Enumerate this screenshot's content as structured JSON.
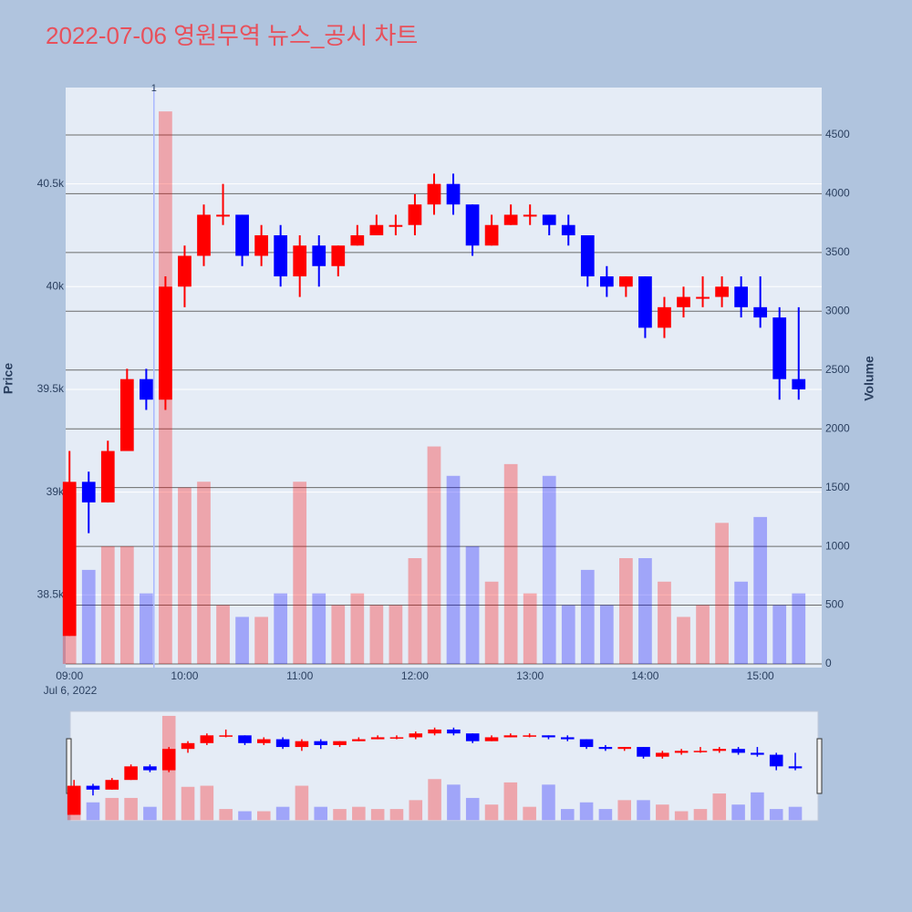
{
  "chart_data": {
    "type": "candlestick",
    "title": "2022-07-06 영원무역 뉴스_공시 차트",
    "x": [
      "09:00",
      "09:10",
      "09:20",
      "09:30",
      "09:40",
      "09:50",
      "10:00",
      "10:10",
      "10:20",
      "10:30",
      "10:40",
      "10:50",
      "11:00",
      "11:10",
      "11:20",
      "11:30",
      "11:40",
      "11:50",
      "12:00",
      "12:10",
      "12:20",
      "12:30",
      "12:40",
      "12:50",
      "13:00",
      "13:10",
      "13:20",
      "13:30",
      "13:40",
      "13:50",
      "14:00",
      "14:10",
      "14:20",
      "14:30",
      "14:40",
      "14:50",
      "15:00",
      "15:10",
      "15:20"
    ],
    "open": [
      38300,
      39050,
      38950,
      39200,
      39550,
      39450,
      40000,
      40150,
      40350,
      40350,
      40150,
      40250,
      40050,
      40200,
      40100,
      40200,
      40250,
      40300,
      40300,
      40400,
      40500,
      40400,
      40200,
      40300,
      40350,
      40350,
      40300,
      40250,
      40050,
      40000,
      40050,
      39800,
      39900,
      39950,
      39950,
      40000,
      39900,
      39850,
      39550
    ],
    "high": [
      39200,
      39100,
      39250,
      39600,
      39600,
      40050,
      40200,
      40400,
      40500,
      40350,
      40300,
      40300,
      40250,
      40250,
      40200,
      40300,
      40350,
      40350,
      40450,
      40550,
      40550,
      40400,
      40350,
      40400,
      40400,
      40350,
      40350,
      40250,
      40100,
      40050,
      40050,
      39950,
      40000,
      40050,
      40050,
      40050,
      40050,
      39900,
      39900
    ],
    "low": [
      38300,
      38800,
      38950,
      39200,
      39400,
      39400,
      39900,
      40100,
      40300,
      40100,
      40100,
      40000,
      39950,
      40000,
      40050,
      40200,
      40250,
      40250,
      40250,
      40350,
      40350,
      40150,
      40200,
      40300,
      40300,
      40250,
      40200,
      40000,
      39950,
      39950,
      39750,
      39750,
      39850,
      39900,
      39900,
      39850,
      39800,
      39450,
      39450
    ],
    "close": [
      39050,
      38950,
      39200,
      39550,
      39450,
      40000,
      40150,
      40350,
      40350,
      40150,
      40250,
      40050,
      40200,
      40100,
      40200,
      40250,
      40300,
      40300,
      40400,
      40500,
      40400,
      40200,
      40300,
      40350,
      40350,
      40300,
      40250,
      40050,
      40000,
      40050,
      39800,
      39900,
      39950,
      39950,
      40000,
      39900,
      39850,
      39550,
      39500
    ],
    "volume": [
      1500,
      800,
      1000,
      1000,
      600,
      4700,
      1500,
      1550,
      500,
      400,
      400,
      600,
      1550,
      600,
      500,
      600,
      500,
      500,
      900,
      1850,
      1600,
      1000,
      700,
      1700,
      600,
      1600,
      500,
      800,
      500,
      900,
      900,
      700,
      400,
      500,
      1200,
      700,
      1250,
      500,
      600
    ],
    "increasing_color": "#ff0000",
    "decreasing_color": "#0000ff",
    "xlim": [
      "08:58",
      "15:32"
    ],
    "xticks": [
      "09:00",
      "10:00",
      "11:00",
      "12:00",
      "13:00",
      "14:00",
      "15:00"
    ],
    "x_date_label": "Jul 6, 2022",
    "ylim": [
      38146,
      40969
    ],
    "yticks": [
      {
        "value": 38500,
        "label": "38.5k"
      },
      {
        "value": 39000,
        "label": "39k"
      },
      {
        "value": 39500,
        "label": "39.5k"
      },
      {
        "value": 40000,
        "label": "40k"
      },
      {
        "value": 40500,
        "label": "40.5k"
      }
    ],
    "y2lim": [
      -31,
      4903
    ],
    "y2ticks": [
      0,
      500,
      1000,
      1500,
      2000,
      2500,
      3000,
      3500,
      4000,
      4500
    ],
    "yaxis_title": "Price",
    "y2axis_title": "Volume",
    "annotation": {
      "x": "09:44",
      "text": "1"
    },
    "rangeslider": true
  }
}
